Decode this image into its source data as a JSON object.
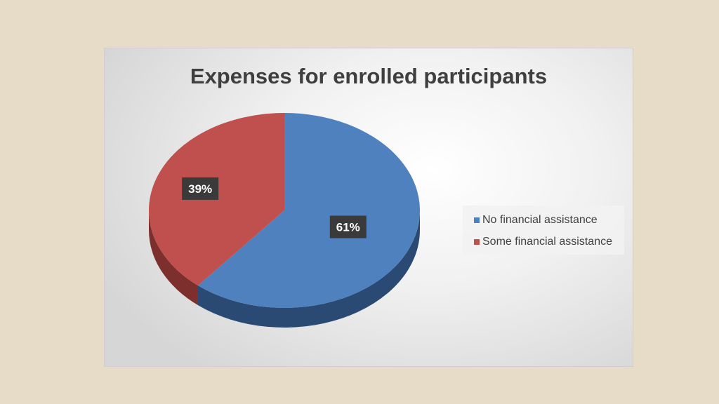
{
  "chart_data": {
    "type": "pie",
    "title": "Expenses for enrolled participants",
    "slices": [
      {
        "name": "No financial assistance",
        "value": 61,
        "label": "61%",
        "color": "#4e81bd",
        "side_color": "#2a4a73"
      },
      {
        "name": "Some financial assistance",
        "value": 39,
        "label": "39%",
        "color": "#c0504d",
        "side_color": "#7d2f2d"
      }
    ],
    "legend_position": "right",
    "style": "3d"
  }
}
